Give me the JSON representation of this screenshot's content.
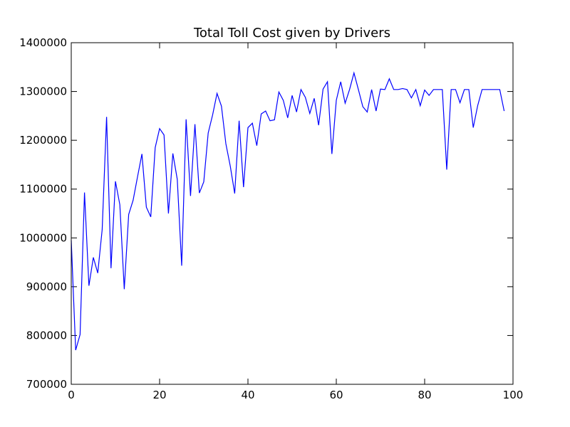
{
  "chart_data": {
    "type": "line",
    "title": "Total Toll Cost given by Drivers",
    "xlabel": "",
    "ylabel": "",
    "xlim": [
      0,
      100
    ],
    "ylim": [
      700000,
      1400000
    ],
    "x_ticks": [
      0,
      20,
      40,
      60,
      80,
      100
    ],
    "x_tick_labels": [
      "0",
      "20",
      "40",
      "60",
      "80",
      "100"
    ],
    "y_ticks": [
      700000,
      800000,
      900000,
      1000000,
      1100000,
      1200000,
      1300000,
      1400000
    ],
    "y_tick_labels": [
      "700000",
      "800000",
      "900000",
      "1000000",
      "1100000",
      "1200000",
      "1300000",
      "1400000"
    ],
    "grid": false,
    "series": [
      {
        "color": "#0000ff",
        "x": [
          0,
          1,
          2,
          3,
          4,
          5,
          6,
          7,
          8,
          9,
          10,
          11,
          12,
          13,
          14,
          15,
          16,
          17,
          18,
          19,
          20,
          21,
          22,
          23,
          24,
          25,
          26,
          27,
          28,
          29,
          30,
          31,
          32,
          33,
          34,
          35,
          36,
          37,
          38,
          39,
          40,
          41,
          42,
          43,
          44,
          45,
          46,
          47,
          48,
          49,
          50,
          51,
          52,
          53,
          54,
          55,
          56,
          57,
          58,
          59,
          60,
          61,
          62,
          63,
          64,
          65,
          66,
          67,
          68,
          69,
          70,
          71,
          72,
          73,
          74,
          75,
          76,
          77,
          78,
          79,
          80,
          81,
          82,
          83,
          84,
          85,
          86,
          87,
          88,
          89,
          90,
          91,
          92,
          93,
          94,
          95,
          96,
          97,
          98
        ],
        "y": [
          995000,
          770000,
          802000,
          1093000,
          902000,
          960000,
          928000,
          1017000,
          1248000,
          938000,
          1116000,
          1068000,
          895000,
          1048000,
          1077000,
          1125000,
          1172000,
          1063000,
          1043000,
          1185000,
          1224000,
          1211000,
          1050000,
          1173000,
          1120000,
          943000,
          1243000,
          1086000,
          1233000,
          1092000,
          1115000,
          1215000,
          1252000,
          1296000,
          1270000,
          1193000,
          1147000,
          1091000,
          1240000,
          1104000,
          1226000,
          1235000,
          1189000,
          1254000,
          1260000,
          1240000,
          1242000,
          1299000,
          1282000,
          1246000,
          1292000,
          1258000,
          1304000,
          1288000,
          1255000,
          1286000,
          1231000,
          1305000,
          1320000,
          1172000,
          1282000,
          1320000,
          1276000,
          1304000,
          1338000,
          1304000,
          1269000,
          1258000,
          1304000,
          1260000,
          1305000,
          1304000,
          1326000,
          1304000,
          1304000,
          1306000,
          1304000,
          1287000,
          1304000,
          1271000,
          1303000,
          1292000,
          1304000,
          1304000,
          1304000,
          1140000,
          1304000,
          1304000,
          1277000,
          1304000,
          1304000,
          1226000,
          1271000,
          1304000,
          1304000,
          1304000,
          1304000,
          1304000,
          1260000
        ]
      }
    ]
  }
}
